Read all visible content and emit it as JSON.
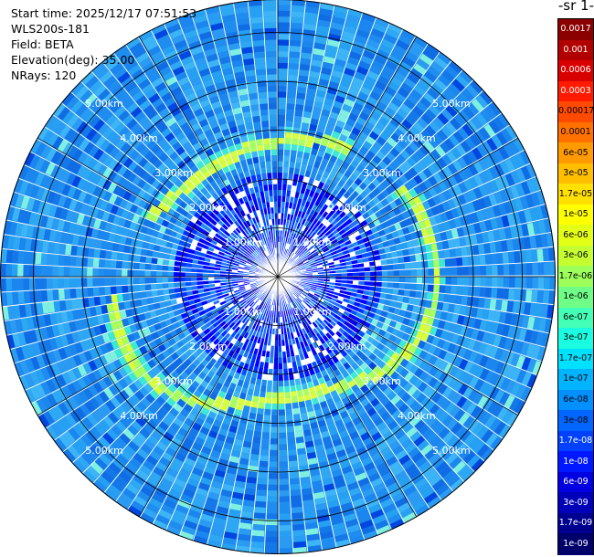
{
  "header": {
    "start_time": "Start time: 2025/12/17 07:51:53",
    "instrument": "WLS200s-181",
    "field": "Field: BETA",
    "elevation": "Elevation(deg): 35.00",
    "nrays": "NRays: 120"
  },
  "colorbar": {
    "unit_label": "-1 sr-",
    "ticks": [
      "0.0017",
      "0.001",
      "0.0006",
      "0.0003",
      "0.00017",
      "0.0001",
      "6e-05",
      "3e-05",
      "1.7e-05",
      "1e-05",
      "6e-06",
      "3e-06",
      "1.7e-06",
      "1e-06",
      "6e-07",
      "3e-07",
      "1.7e-07",
      "1e-07",
      "6e-08",
      "3e-08",
      "1.7e-08",
      "1e-08",
      "6e-09",
      "3e-09",
      "1.7e-09",
      "1e-09"
    ],
    "colors": [
      "#8b0000",
      "#b20000",
      "#d80000",
      "#ff1a00",
      "#ff4a00",
      "#ff7200",
      "#ff9a00",
      "#ffbe00",
      "#ffe000",
      "#ffff00",
      "#e4ff16",
      "#c6ff30",
      "#9cff5a",
      "#70ff86",
      "#44ffb6",
      "#1afde0",
      "#00e0ff",
      "#00b4ff",
      "#0090ff",
      "#0066ff",
      "#0040ff",
      "#0018ff",
      "#0000e0",
      "#0000b8",
      "#000090",
      "#00006a"
    ]
  },
  "rings": {
    "labels": [
      "1.00km",
      "2.00km",
      "3.00km",
      "4.00km",
      "5.00km"
    ],
    "range_km": [
      1,
      2,
      3,
      4,
      5
    ]
  },
  "chart_data": {
    "type": "heatmap",
    "projection": "polar PPI",
    "field": "BETA",
    "elevation_deg": 35.0,
    "n_rays": 120,
    "range_km": [
      0,
      5.6
    ],
    "ring_labels": [
      "1.00km",
      "2.00km",
      "3.00km",
      "4.00km",
      "5.00km"
    ],
    "color_scale": "log",
    "color_range": [
      1e-09,
      0.0017
    ],
    "features": [
      {
        "kind": "background",
        "value": 1.7e-07
      },
      {
        "kind": "near-range noise",
        "range_km": [
          0,
          2.0
        ],
        "value": 1e-08
      },
      {
        "kind": "high-backscatter ring",
        "range_km": 2.95,
        "value": 6e-06
      }
    ]
  }
}
